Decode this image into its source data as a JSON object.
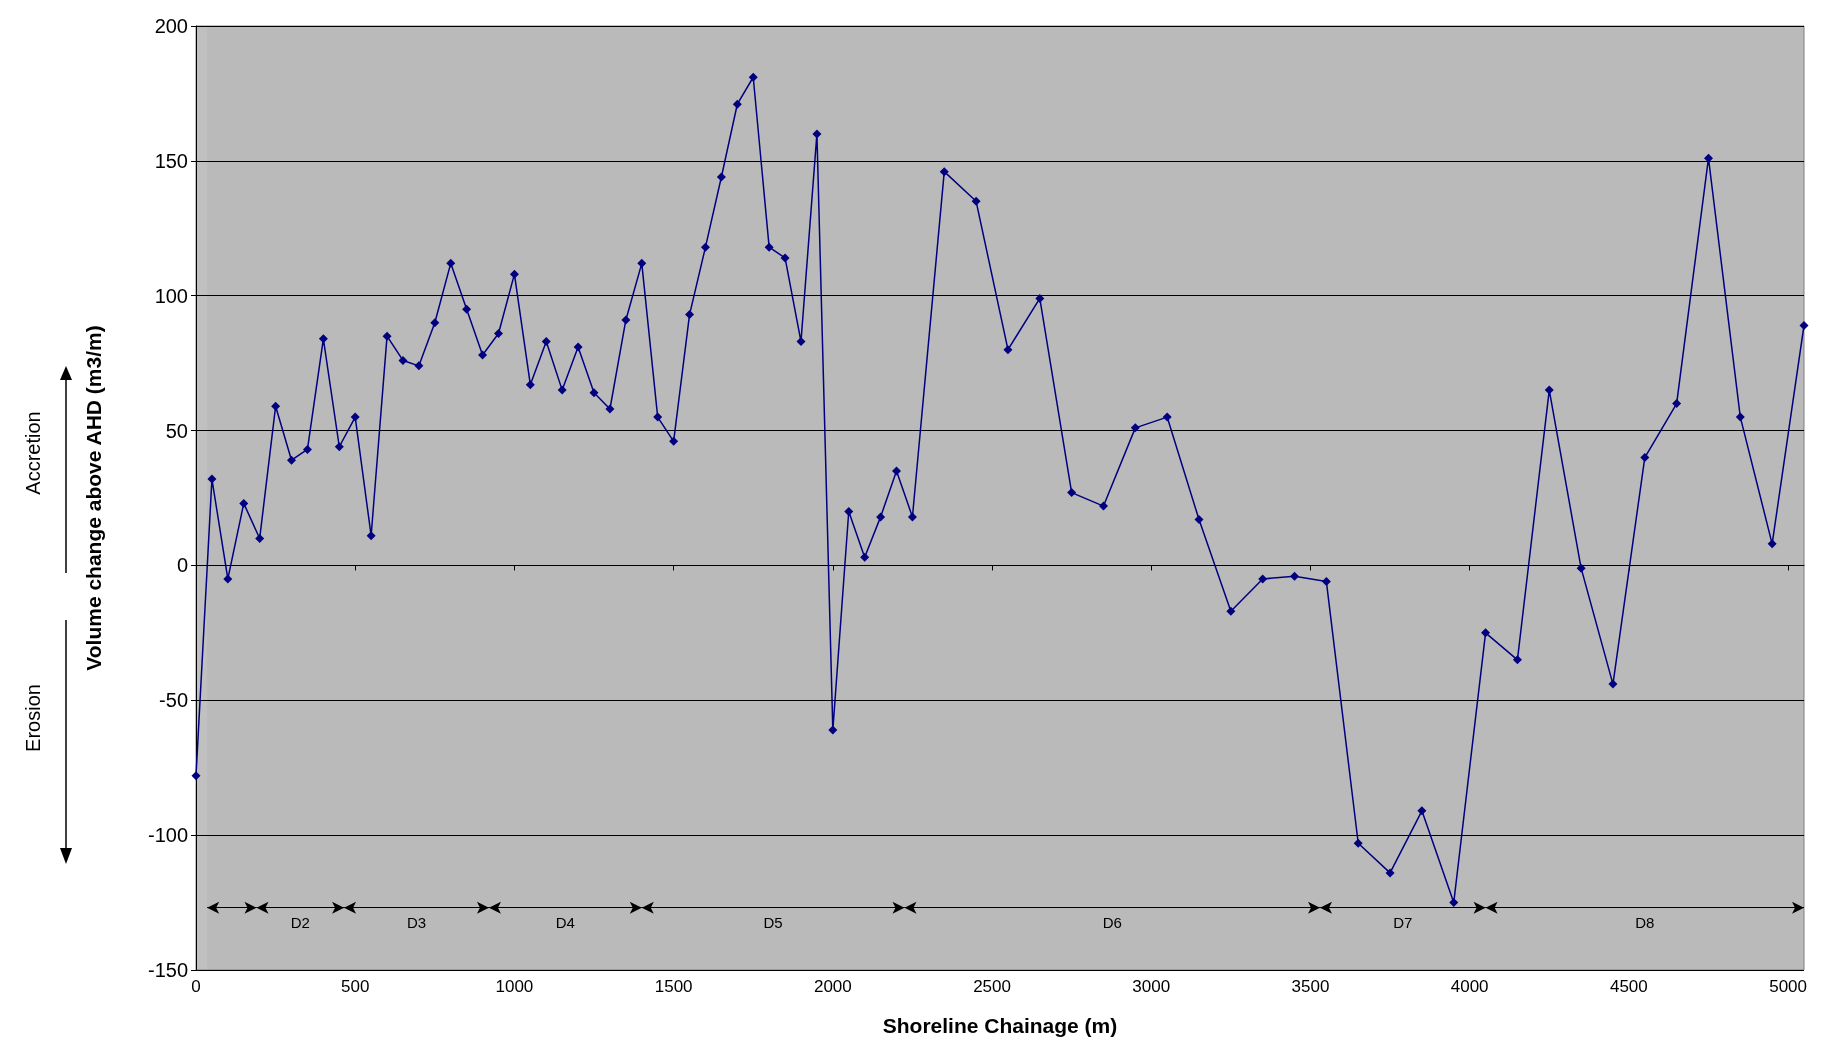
{
  "chart_data": {
    "type": "line",
    "xlabel": "Shoreline Chainage (m)",
    "ylabel": "Volume change above AHD (m3/m)",
    "x": [
      0,
      50,
      100,
      150,
      200,
      250,
      300,
      350,
      400,
      450,
      500,
      550,
      600,
      650,
      700,
      750,
      800,
      850,
      900,
      950,
      1000,
      1050,
      1100,
      1150,
      1200,
      1250,
      1300,
      1350,
      1400,
      1450,
      1500,
      1550,
      1600,
      1650,
      1700,
      1750,
      1800,
      1850,
      1900,
      1950,
      2000,
      2050,
      2100,
      2150,
      2200,
      2250,
      2350,
      2450,
      2550,
      2650,
      2750,
      2850,
      2950,
      3050,
      3150,
      3250,
      3350,
      3450,
      3550,
      3650,
      3750,
      3850,
      3950,
      4050,
      4150,
      4250,
      4350,
      4450,
      4550,
      4650,
      4750,
      4850,
      4950,
      5050
    ],
    "series": [
      {
        "color": "#000080",
        "values": [
          -78,
          32,
          -5,
          23,
          10,
          59,
          39,
          43,
          84,
          44,
          55,
          11,
          85,
          76,
          74,
          90,
          112,
          95,
          78,
          86,
          108,
          67,
          83,
          65,
          81,
          64,
          58,
          91,
          112,
          55,
          46,
          93,
          118,
          144,
          171,
          181,
          118,
          114,
          83,
          160,
          -61,
          20,
          3,
          18,
          35,
          18,
          146,
          135,
          80,
          99,
          27,
          22,
          51,
          55,
          17,
          -17,
          -5,
          -4,
          -6,
          -103,
          -114,
          -91,
          -125,
          -25,
          -35,
          65,
          -1,
          -44,
          40,
          60,
          151,
          55,
          8,
          89
        ]
      }
    ],
    "xlim": [
      0,
      5050
    ],
    "xticks": [
      0,
      500,
      1000,
      1500,
      2000,
      2500,
      3000,
      3500,
      4000,
      4500,
      5000
    ],
    "ylim": [
      -150,
      200
    ],
    "yticks": [
      -150,
      -100,
      -50,
      0,
      50,
      100,
      150,
      200
    ],
    "grid": "y",
    "marker": "diamond",
    "line_style": "solid",
    "bands": [
      {
        "axis": "x",
        "from": 35,
        "to": 190,
        "label": null
      },
      {
        "axis": "x",
        "from": 190,
        "to": 465,
        "label": "D2"
      },
      {
        "axis": "x",
        "from": 465,
        "to": 920,
        "label": "D3"
      },
      {
        "axis": "x",
        "from": 920,
        "to": 1400,
        "label": "D4"
      },
      {
        "axis": "x",
        "from": 1400,
        "to": 2225,
        "label": "D5"
      },
      {
        "axis": "x",
        "from": 2225,
        "to": 3530,
        "label": "D6"
      },
      {
        "axis": "x",
        "from": 3530,
        "to": 4050,
        "label": "D7"
      },
      {
        "axis": "x",
        "from": 4050,
        "to": 5050,
        "label": "D8"
      }
    ],
    "annotations": [
      "Accretion",
      "Erosion"
    ]
  }
}
